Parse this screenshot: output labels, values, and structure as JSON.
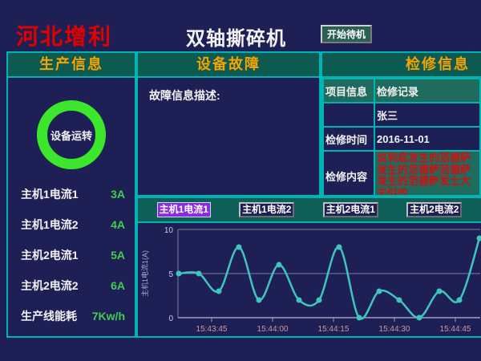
{
  "header": {
    "company": "河北增利",
    "title": "双轴撕碎机",
    "standby_button": "开始待机"
  },
  "production": {
    "title": "生产信息",
    "status_ring_label": "设备运转",
    "metrics": [
      {
        "label": "主机1电流1",
        "value": "3A"
      },
      {
        "label": "主机1电流2",
        "value": "4A"
      },
      {
        "label": "主机2电流1",
        "value": "5A"
      },
      {
        "label": "主机2电流2",
        "value": "6A"
      },
      {
        "label": "生产线能耗",
        "value": "7Kw/h"
      }
    ]
  },
  "fault": {
    "title": "设备故障",
    "description_label": "故障信息描述:"
  },
  "maintenance": {
    "title": "检修信息",
    "table": {
      "col_headers": [
        "项目信息",
        "检修记录"
      ],
      "rows": [
        {
          "label": "",
          "value": "张三",
          "highlight": false
        },
        {
          "label": "检修时间",
          "value": "2016-11-01",
          "highlight": false
        },
        {
          "label": "检修内容",
          "value": "说到底发生的范德萨发生的范德萨范德萨发生的范德萨发士大夫似的",
          "highlight": true
        }
      ]
    }
  },
  "trend": {
    "buttons": [
      {
        "label": "主机1电流1",
        "selected": true
      },
      {
        "label": "主机1电流2",
        "selected": false
      },
      {
        "label": "主机2电流1",
        "selected": false
      },
      {
        "label": "主机2电流2",
        "selected": false
      }
    ]
  },
  "chart_data": {
    "type": "line",
    "title": "",
    "ylabel": "主机1电流1(A)",
    "xlabel": "",
    "ylim": [
      0,
      10
    ],
    "yticks": [
      0,
      5,
      10
    ],
    "xticklabels": [
      "15:43:45",
      "15:44:00",
      "15:44:15",
      "15:44:30",
      "15:44:45"
    ],
    "series": [
      {
        "name": "主机1电流1",
        "values": [
          5,
          5,
          3,
          8,
          2,
          6,
          2,
          2,
          8,
          0,
          3,
          2,
          0,
          3,
          2,
          9
        ]
      }
    ],
    "grid": true,
    "legend": false,
    "line_color": "#3ec6bd",
    "marker": "circle"
  },
  "colors": {
    "background": "#1e2055",
    "accent_border": "#00b4b4",
    "panel_header_bg": "#0d5a50",
    "panel_header_text": "#f5a300",
    "company_text": "#e00000",
    "status_ring": "#3ce62b",
    "metric_value": "#3fcf4f",
    "selected_button_bg": "#8a2be2",
    "alarm_text": "#d01010",
    "chart_line": "#3ec6bd",
    "x_tick_text": "#c79a9a"
  }
}
